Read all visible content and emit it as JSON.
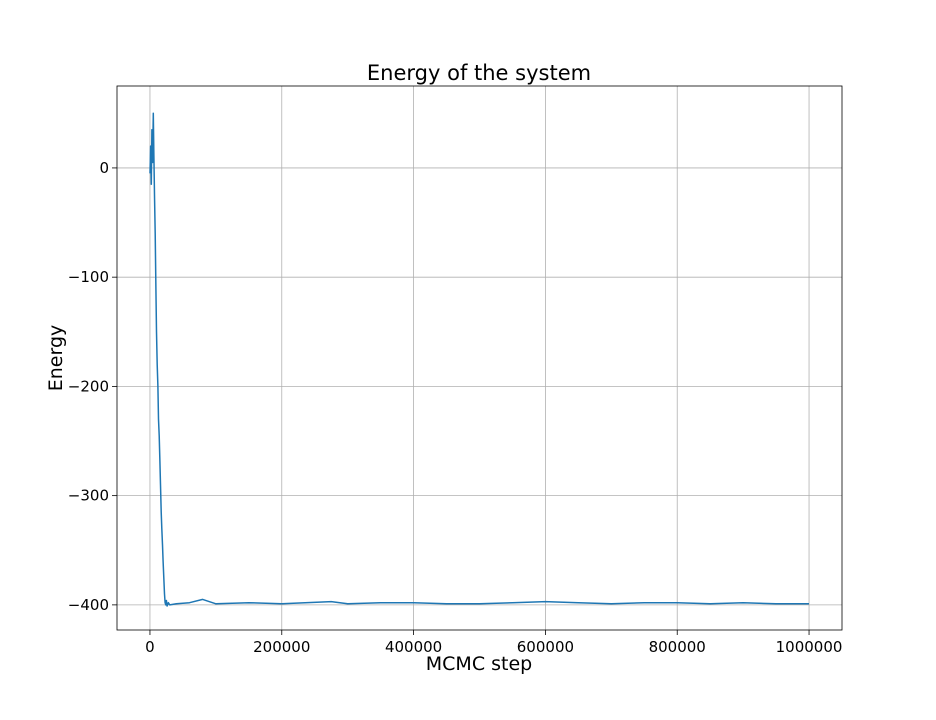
{
  "chart_data": {
    "type": "line",
    "title": "Energy of the system",
    "xlabel": "MCMC step",
    "ylabel": "Energy",
    "xlim": [
      -50000,
      1050000
    ],
    "ylim": [
      -423,
      75
    ],
    "xticks": [
      0,
      200000,
      400000,
      600000,
      800000,
      1000000
    ],
    "xtick_labels": [
      "0",
      "200000",
      "400000",
      "600000",
      "800000",
      "1000000"
    ],
    "yticks": [
      0,
      -100,
      -200,
      -300,
      -400
    ],
    "ytick_labels": [
      "0",
      "−100",
      "−200",
      "−300",
      "−400"
    ],
    "grid": true,
    "series": [
      {
        "color": "#1f77b4",
        "x": [
          0,
          1000,
          2000,
          3000,
          4000,
          5000,
          6000,
          7000,
          8000,
          9000,
          10000,
          11000,
          12000,
          13000,
          14000,
          15000,
          16000,
          17000,
          18000,
          19000,
          20000,
          21000,
          22000,
          23000,
          24000,
          25000,
          26000,
          28000,
          30000,
          40000,
          60000,
          80000,
          100000,
          150000,
          200000,
          275000,
          300000,
          350000,
          400000,
          450000,
          500000,
          550000,
          600000,
          650000,
          700000,
          750000,
          800000,
          850000,
          900000,
          950000,
          1000000
        ],
        "y": [
          -5,
          20,
          -15,
          35,
          5,
          50,
          10,
          -30,
          -60,
          -110,
          -150,
          -180,
          -200,
          -230,
          -245,
          -265,
          -290,
          -315,
          -330,
          -345,
          -360,
          -375,
          -390,
          -398,
          -400,
          -396,
          -401,
          -398,
          -400,
          -399,
          -398,
          -395,
          -399,
          -398,
          -399,
          -397,
          -399,
          -398,
          -398,
          -399,
          -399,
          -398,
          -397,
          -398,
          -399,
          -398,
          -398,
          -399,
          -398,
          -399,
          -399
        ]
      }
    ]
  }
}
